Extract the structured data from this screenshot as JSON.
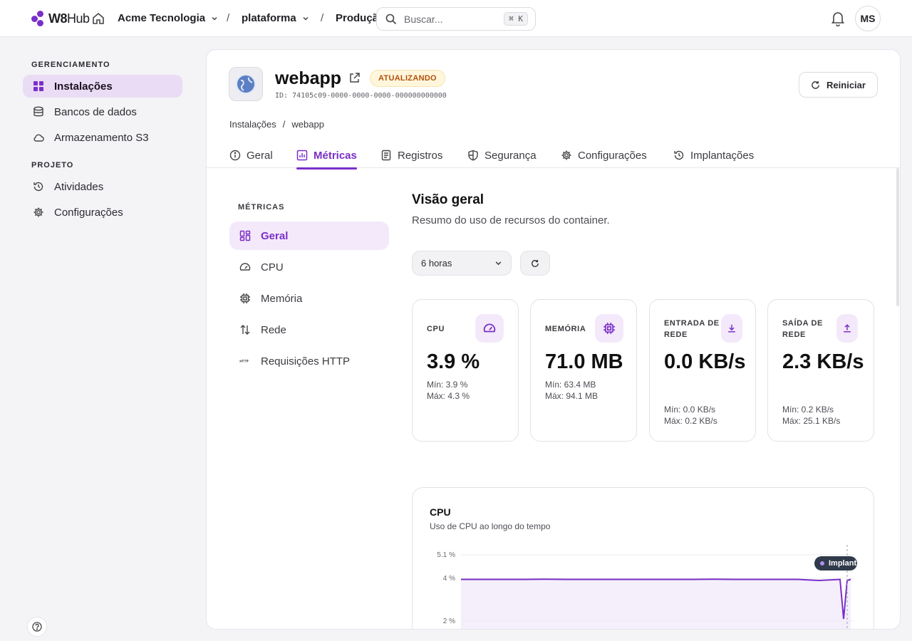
{
  "topbar": {
    "logo_text": "W8",
    "logo_text_light": "Hub",
    "org": "Acme Tecnologia",
    "separator": "/",
    "project": "plataforma",
    "environment": "Produção",
    "search_placeholder": "Buscar...",
    "search_shortcut": "⌘ K",
    "avatar_initials": "MS"
  },
  "sidebar": {
    "group1_title": "GERENCIAMENTO",
    "group2_title": "PROJETO",
    "items": [
      {
        "label": "Instalações",
        "icon": "grid-icon",
        "active": true
      },
      {
        "label": "Bancos de dados",
        "icon": "database-icon"
      },
      {
        "label": "Armazenamento S3",
        "icon": "cloud-icon"
      },
      {
        "label": "Atividades",
        "icon": "history-icon"
      },
      {
        "label": "Configurações",
        "icon": "gear-icon"
      }
    ]
  },
  "app": {
    "name": "webapp",
    "status": "ATUALIZANDO",
    "id_text": "ID: 74105c09-0000-0000-0000-000000000000",
    "restart_label": "Reiniciar"
  },
  "breadcrumb": {
    "root": "Instalações",
    "separator": "/",
    "current": "webapp"
  },
  "tabs": [
    {
      "label": "Geral",
      "icon": "info-icon"
    },
    {
      "label": "Métricas",
      "icon": "bar-chart-icon",
      "active": true
    },
    {
      "label": "Registros",
      "icon": "document-icon"
    },
    {
      "label": "Segurança",
      "icon": "shield-icon"
    },
    {
      "label": "Configurações",
      "icon": "gear-icon"
    },
    {
      "label": "Implantações",
      "icon": "history-icon"
    }
  ],
  "metrics_nav": {
    "title": "MÉTRICAS",
    "items": [
      {
        "label": "Geral",
        "icon": "dashboard-icon",
        "active": true
      },
      {
        "label": "CPU",
        "icon": "gauge-icon"
      },
      {
        "label": "Memória",
        "icon": "chip-icon"
      },
      {
        "label": "Rede",
        "icon": "arrows-updown-icon"
      },
      {
        "label": "Requisições HTTP",
        "icon": "http-icon"
      }
    ]
  },
  "overview": {
    "title": "Visão geral",
    "subtitle": "Resumo do uso de recursos do container.",
    "range": "6 horas"
  },
  "cards": [
    {
      "label": "CPU",
      "value": "3.9 %",
      "min": "Mín: 3.9 %",
      "max": "Máx: 4.3 %",
      "icon": "gauge-icon"
    },
    {
      "label": "MEMÓRIA",
      "value": "71.0 MB",
      "min": "Mín: 63.4 MB",
      "max": "Máx: 94.1 MB",
      "icon": "chip-icon"
    },
    {
      "label": "ENTRADA DE REDE",
      "value": "0.0 KB/s",
      "min": "Mín: 0.0 KB/s",
      "max": "Máx: 0.2 KB/s",
      "icon": "download-icon"
    },
    {
      "label": "SAÍDA DE REDE",
      "value": "2.3 KB/s",
      "min": "Mín: 0.2 KB/s",
      "max": "Máx: 25.1 KB/s",
      "icon": "upload-icon"
    }
  ],
  "cpu_chart": {
    "title": "CPU",
    "subtitle": "Uso de CPU ao longo do tempo",
    "marker_label": "Implantação"
  },
  "chart_data": {
    "type": "line",
    "title": "CPU",
    "subtitle": "Uso de CPU ao longo do tempo",
    "y_ticks": [
      "5.1 %",
      "4 %",
      "2 %"
    ],
    "y_tick_values": [
      5.1,
      4,
      2
    ],
    "series": [
      {
        "values": [
          3.95,
          3.95,
          3.95,
          3.95,
          3.96,
          3.95,
          3.95,
          3.95,
          3.95,
          3.95,
          3.95,
          3.95,
          3.96,
          3.95,
          3.95,
          3.95,
          3.95,
          3.9,
          3.95,
          2.1,
          3.9,
          3.95
        ]
      }
    ],
    "colors": {
      "line": "#7a2fc8",
      "area": "#f1e8fb"
    }
  }
}
